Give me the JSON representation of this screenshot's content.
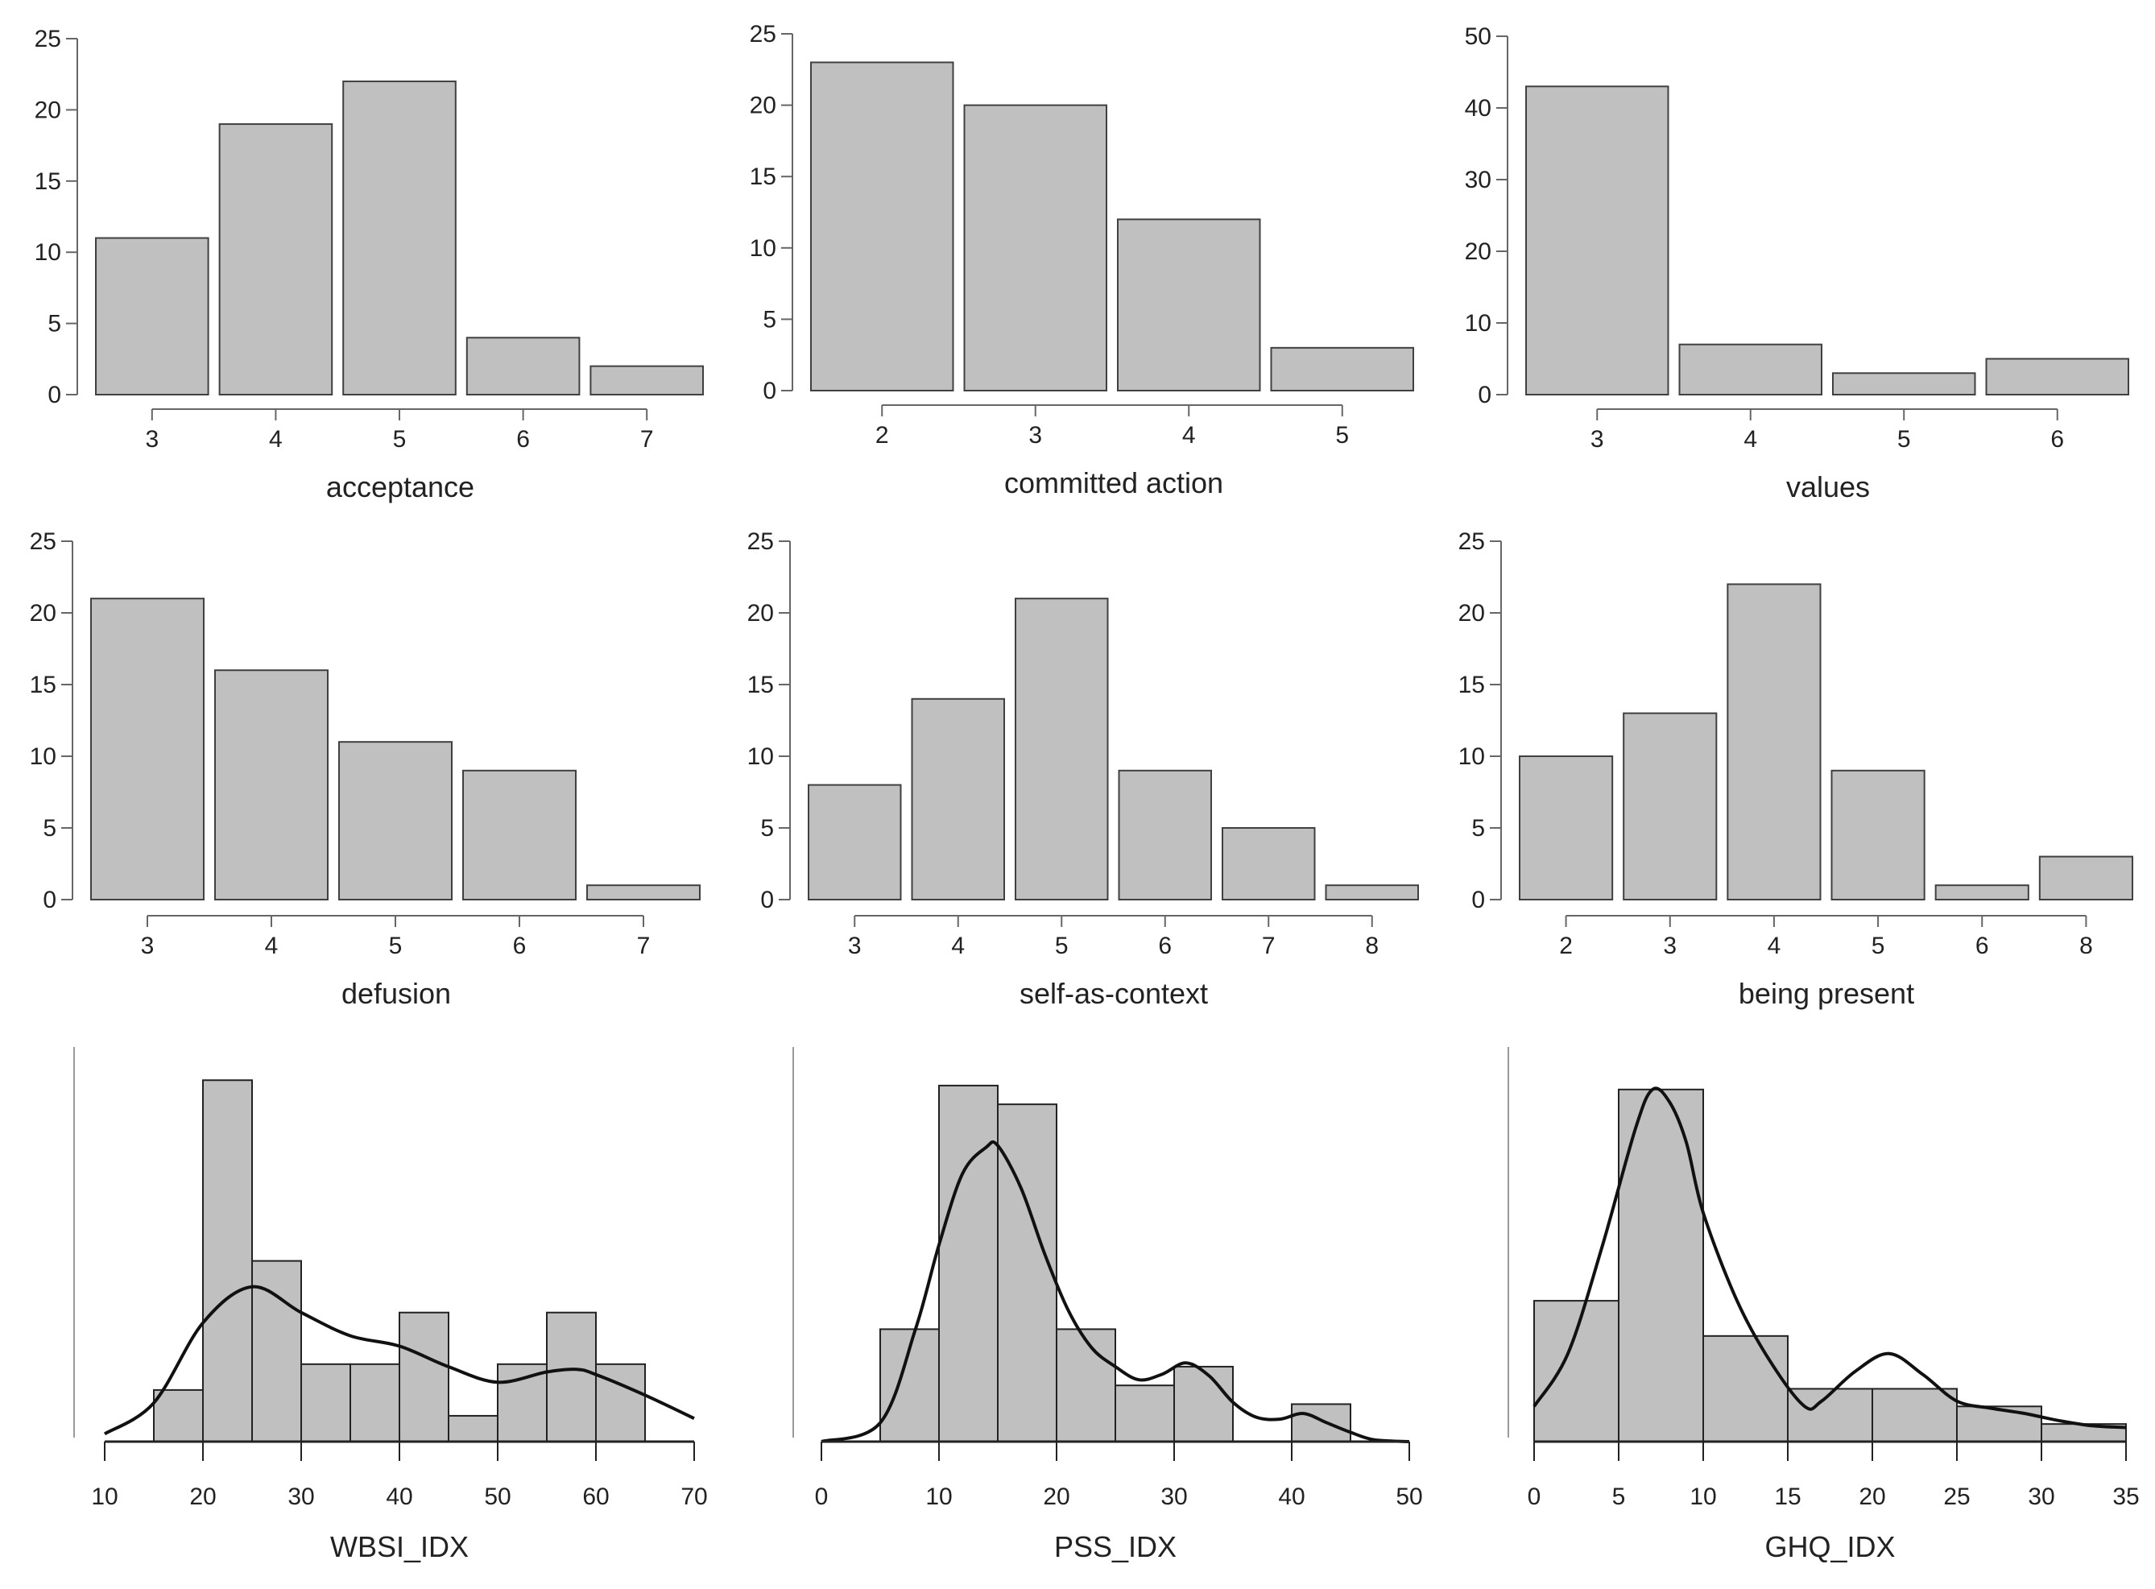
{
  "colors": {
    "bar_fill": "#c0c0c0",
    "bar_stroke": "#404040",
    "axis": "#666666",
    "density_line": "#111111"
  },
  "chart_data": [
    {
      "type": "bar",
      "xlabel": "acceptance",
      "categories": [
        "3",
        "4",
        "5",
        "6",
        "7"
      ],
      "values": [
        11,
        19,
        22,
        4,
        2
      ],
      "ylim": [
        0,
        25
      ],
      "yticks": [
        "0",
        "5",
        "10",
        "15",
        "20",
        "25"
      ],
      "grid": false
    },
    {
      "type": "bar",
      "xlabel": "committed action",
      "categories": [
        "2",
        "3",
        "4",
        "5"
      ],
      "values": [
        23,
        20,
        12,
        3
      ],
      "ylim": [
        0,
        25
      ],
      "yticks": [
        "0",
        "5",
        "10",
        "15",
        "20",
        "25"
      ],
      "grid": false
    },
    {
      "type": "bar",
      "xlabel": "values",
      "categories": [
        "3",
        "4",
        "5",
        "6"
      ],
      "values": [
        43,
        7,
        3,
        5
      ],
      "ylim": [
        0,
        50
      ],
      "yticks": [
        "0",
        "10",
        "20",
        "30",
        "40",
        "50"
      ],
      "grid": false
    },
    {
      "type": "bar",
      "xlabel": "defusion",
      "categories": [
        "3",
        "4",
        "5",
        "6",
        "7"
      ],
      "values": [
        21,
        16,
        11,
        9,
        1
      ],
      "ylim": [
        0,
        25
      ],
      "yticks": [
        "0",
        "5",
        "10",
        "15",
        "20",
        "25"
      ],
      "grid": false
    },
    {
      "type": "bar",
      "xlabel": "self-as-context",
      "categories": [
        "3",
        "4",
        "5",
        "6",
        "7",
        "8"
      ],
      "values": [
        8,
        14,
        21,
        9,
        5,
        1
      ],
      "ylim": [
        0,
        25
      ],
      "yticks": [
        "0",
        "5",
        "10",
        "15",
        "20",
        "25"
      ],
      "grid": false
    },
    {
      "type": "bar",
      "xlabel": "being present",
      "categories": [
        "2",
        "3",
        "4",
        "5",
        "6",
        "8"
      ],
      "values": [
        10,
        13,
        22,
        9,
        1,
        3
      ],
      "ylim": [
        0,
        25
      ],
      "yticks": [
        "0",
        "5",
        "10",
        "15",
        "20",
        "25"
      ],
      "grid": false
    },
    {
      "type": "histogram",
      "xlabel": "WBSI_IDX",
      "bin_edges": [
        15,
        20,
        25,
        30,
        35,
        40,
        45,
        50,
        55,
        60,
        65
      ],
      "counts": [
        2,
        14,
        7,
        3,
        3,
        5,
        1,
        3,
        5,
        3
      ],
      "density_curve": [
        [
          10,
          0.3
        ],
        [
          15,
          1.5
        ],
        [
          20,
          4.6
        ],
        [
          25,
          6.0
        ],
        [
          30,
          5.0
        ],
        [
          35,
          4.1
        ],
        [
          40,
          3.7
        ],
        [
          45,
          2.9
        ],
        [
          50,
          2.3
        ],
        [
          55,
          2.7
        ],
        [
          58,
          2.8
        ],
        [
          60,
          2.6
        ],
        [
          65,
          1.8
        ],
        [
          70,
          0.9
        ]
      ],
      "xlim": [
        10,
        70
      ],
      "xticks": [
        "10",
        "20",
        "30",
        "40",
        "50",
        "60",
        "70"
      ],
      "ylim": [
        0,
        14.6
      ],
      "grid": false
    },
    {
      "type": "histogram",
      "xlabel": "PSS_IDX",
      "bin_edges": [
        5,
        10,
        15,
        20,
        25,
        30,
        35,
        40,
        45
      ],
      "counts": [
        6,
        19,
        18,
        6,
        3,
        4,
        0,
        2
      ],
      "density_curve": [
        [
          0,
          0.0
        ],
        [
          5,
          1.0
        ],
        [
          8,
          6.0
        ],
        [
          10,
          10.5
        ],
        [
          12,
          14.3
        ],
        [
          14,
          15.7
        ],
        [
          15,
          15.8
        ],
        [
          17,
          13.5
        ],
        [
          19,
          10.0
        ],
        [
          21,
          7.0
        ],
        [
          23,
          5.0
        ],
        [
          25,
          4.0
        ],
        [
          27,
          3.3
        ],
        [
          29,
          3.6
        ],
        [
          31,
          4.2
        ],
        [
          33,
          3.5
        ],
        [
          35,
          2.1
        ],
        [
          37,
          1.3
        ],
        [
          39,
          1.2
        ],
        [
          41,
          1.5
        ],
        [
          43,
          1.0
        ],
        [
          45,
          0.5
        ],
        [
          47,
          0.1
        ],
        [
          50,
          0.0
        ]
      ],
      "xlim": [
        0,
        50
      ],
      "xticks": [
        "0",
        "10",
        "20",
        "30",
        "40",
        "50"
      ],
      "ylim": [
        0,
        20.2
      ],
      "grid": false
    },
    {
      "type": "histogram",
      "xlabel": "GHQ_IDX",
      "bin_edges": [
        0,
        5,
        10,
        15,
        20,
        25,
        30,
        35
      ],
      "counts": [
        8,
        20,
        6,
        3,
        3,
        2,
        1
      ],
      "density_curve": [
        [
          0,
          2.0
        ],
        [
          2,
          5.0
        ],
        [
          4,
          11.0
        ],
        [
          6,
          17.8
        ],
        [
          7,
          20.0
        ],
        [
          8,
          19.3
        ],
        [
          9,
          17.0
        ],
        [
          10,
          13.0
        ],
        [
          12,
          8.0
        ],
        [
          14,
          4.5
        ],
        [
          16,
          2.0
        ],
        [
          17,
          2.3
        ],
        [
          19,
          4.0
        ],
        [
          21,
          5.0
        ],
        [
          23,
          3.8
        ],
        [
          25,
          2.3
        ],
        [
          27,
          1.9
        ],
        [
          29,
          1.6
        ],
        [
          31,
          1.2
        ],
        [
          33,
          0.9
        ],
        [
          35,
          0.8
        ]
      ],
      "xlim": [
        0,
        35
      ],
      "xticks": [
        "0",
        "5",
        "10",
        "15",
        "20",
        "25",
        "30",
        "35"
      ],
      "ylim": [
        0,
        21.5
      ],
      "grid": false
    }
  ]
}
